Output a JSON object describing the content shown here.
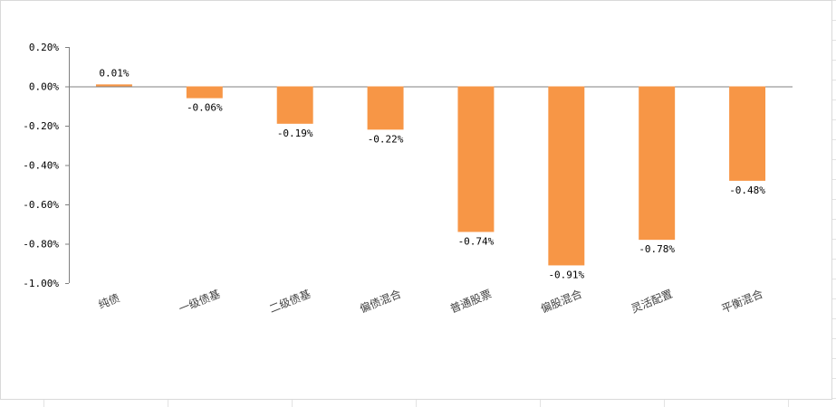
{
  "chart_data": {
    "type": "bar",
    "categories": [
      "纯债",
      "一级债基",
      "二级债基",
      "偏债混合",
      "普通股票",
      "偏股混合",
      "灵活配置",
      "平衡混合"
    ],
    "values": [
      0.01,
      -0.06,
      -0.19,
      -0.22,
      -0.74,
      -0.91,
      -0.78,
      -0.48
    ],
    "data_labels": [
      "0.01%",
      "-0.06%",
      "-0.19%",
      "-0.22%",
      "-0.74%",
      "-0.91%",
      "-0.78%",
      "-0.48%"
    ],
    "y_ticks": [
      0.2,
      0.0,
      -0.2,
      -0.4,
      -0.6,
      -0.8,
      -1.0
    ],
    "y_tick_labels": [
      "0.20%",
      "0.00%",
      "-0.20%",
      "-0.40%",
      "-0.60%",
      "-0.80%",
      "-1.00%"
    ],
    "ylim": [
      -1.0,
      0.2
    ],
    "unit": "%",
    "bar_color": "#F79646",
    "axis_color": "#808080",
    "title": "",
    "xlabel": "",
    "ylabel": "",
    "grid": false,
    "legend": "none"
  }
}
